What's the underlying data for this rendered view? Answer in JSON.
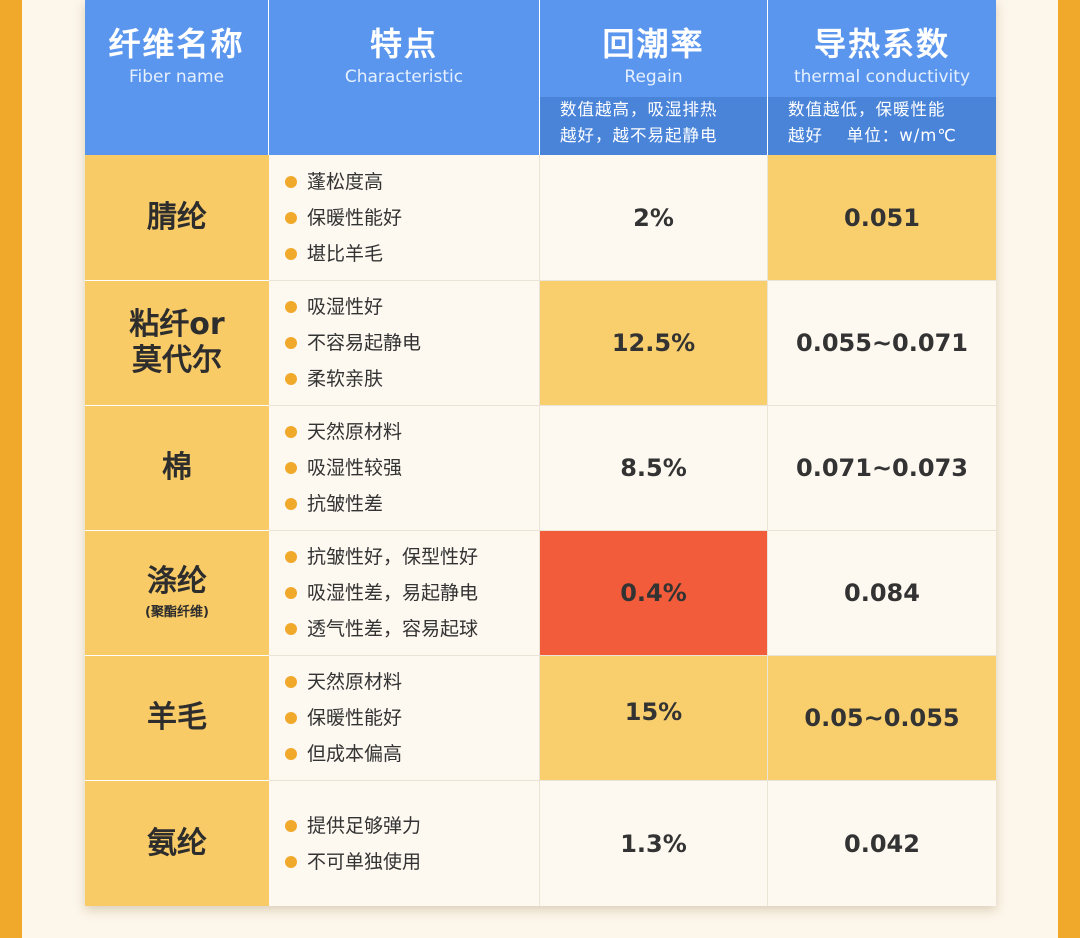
{
  "header": {
    "name": {
      "cn": "纤维名称",
      "en": "Fiber name"
    },
    "feature": {
      "cn": "特点",
      "en": "Characteristic"
    },
    "regain": {
      "cn": "回潮率",
      "en": "Regain",
      "note_line1": "数值越高，吸湿排热",
      "note_line2": "越好，越不易起静电"
    },
    "conductivity": {
      "cn": "导热系数",
      "en": "thermal conductivity",
      "note_line1": "数值越低，保暖性能",
      "note_line2": "越好　 单位：w/m℃"
    }
  },
  "rows": [
    {
      "name": "腈纶",
      "name_line2": "",
      "sub": "",
      "features": [
        "蓬松度高",
        "保暖性能好",
        "堪比羊毛"
      ],
      "regain": "2%",
      "conductivity": "0.051",
      "regain_highlight": "plain",
      "cond_highlight": "yellow"
    },
    {
      "name": "粘纤or",
      "name_line2": "莫代尔",
      "sub": "",
      "features": [
        "吸湿性好",
        "不容易起静电",
        "柔软亲肤"
      ],
      "regain": "12.5%",
      "conductivity": "0.055~0.071",
      "regain_highlight": "yellow",
      "cond_highlight": "plain"
    },
    {
      "name": "棉",
      "name_line2": "",
      "sub": "",
      "features": [
        "天然原材料",
        "吸湿性较强",
        "抗皱性差"
      ],
      "regain": "8.5%",
      "conductivity": "0.071~0.073",
      "regain_highlight": "plain",
      "cond_highlight": "plain"
    },
    {
      "name": "涤纶",
      "name_line2": "",
      "sub": "(聚酯纤维)",
      "features": [
        "抗皱性好，保型性好",
        "吸湿性差，易起静电",
        "透气性差，容易起球"
      ],
      "regain": "0.4%",
      "conductivity": "0.084",
      "regain_highlight": "red",
      "cond_highlight": "plain"
    },
    {
      "name": "羊毛",
      "name_line2": "",
      "sub": "",
      "features": [
        "天然原材料",
        "保暖性能好",
        "但成本偏高"
      ],
      "regain": "15%",
      "conductivity": "0.05~0.055",
      "regain_highlight": "yellow",
      "cond_highlight": "yellow"
    },
    {
      "name": "氨纶",
      "name_line2": "",
      "sub": "",
      "features": [
        "提供足够弹力",
        "不可单独使用"
      ],
      "regain": "1.3%",
      "conductivity": "0.042",
      "regain_highlight": "plain",
      "cond_highlight": "plain"
    }
  ],
  "colors": {
    "header_blue": "#5b96ee",
    "note_blue": "#4a84d9",
    "yellow": "#f9cf6e",
    "red": "#f25c3a",
    "frame_orange": "#f1a92c"
  }
}
